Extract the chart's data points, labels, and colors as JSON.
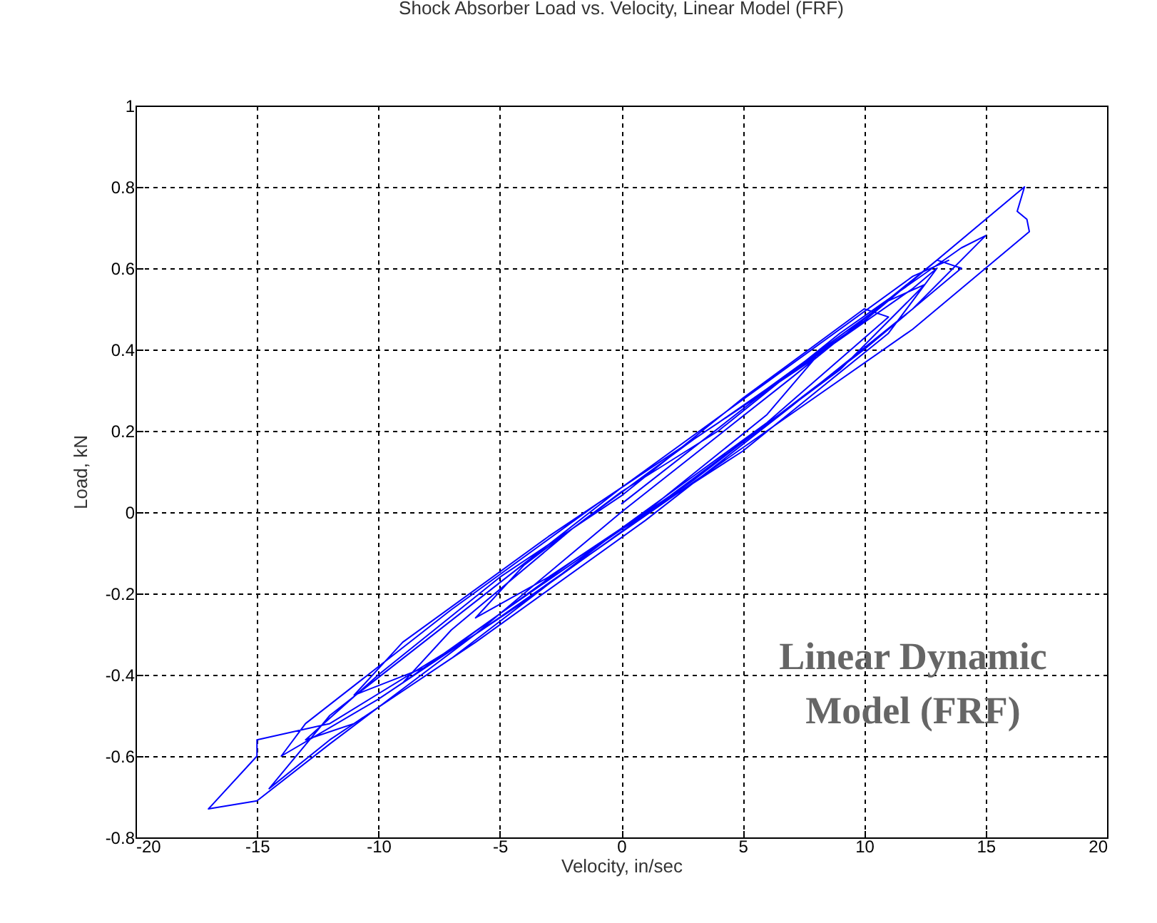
{
  "chart_data": {
    "type": "line",
    "title": "Shock Absorber Load vs. Velocity, Linear Model (FRF)",
    "xlabel": "Velocity, in/sec",
    "ylabel": "Load, kN",
    "annotations": [
      "Linear Dynamic Model (FRF)"
    ],
    "xlim": [
      -20,
      20
    ],
    "xticks": [
      -20,
      -15,
      -10,
      -5,
      0,
      5,
      10,
      15,
      20
    ],
    "ylim": [
      -0.8,
      1
    ],
    "yticks": [
      -0.8,
      -0.6,
      -0.4,
      -0.2,
      0,
      0.2,
      0.4,
      0.6,
      0.8,
      1
    ],
    "grid": true,
    "line_style": "solid",
    "series": [
      {
        "color": "#0000ff",
        "x": [
          0,
          6,
          12,
          13,
          11,
          5,
          -2,
          -8,
          -11,
          -9,
          -3,
          4,
          10,
          16.6,
          16.3,
          16.7,
          16.8,
          12,
          6,
          0,
          -6,
          -12,
          -15,
          -15,
          -17,
          -15,
          -12,
          -6,
          0,
          7,
          13,
          14,
          10,
          3,
          -4,
          -10,
          -14,
          -13,
          -7,
          -1,
          5,
          11,
          12.5,
          9,
          2,
          -5,
          -9,
          -7,
          -2,
          3,
          8,
          6,
          1,
          -3,
          -6,
          -4,
          0,
          4,
          9,
          14,
          15,
          12,
          7,
          1,
          -6,
          -11,
          -13,
          -10,
          -5,
          0,
          5,
          10,
          11,
          6,
          0,
          -7,
          -12,
          -14.5,
          -12,
          -6,
          0,
          6,
          12,
          13.5
        ],
        "values": [
          0.02,
          0.3,
          0.55,
          0.6,
          0.44,
          0.15,
          -0.12,
          -0.38,
          -0.45,
          -0.32,
          -0.06,
          0.22,
          0.47,
          0.8,
          0.74,
          0.72,
          0.69,
          0.45,
          0.2,
          -0.05,
          -0.3,
          -0.52,
          -0.56,
          -0.6,
          -0.73,
          -0.71,
          -0.57,
          -0.3,
          0,
          0.33,
          0.62,
          0.6,
          0.4,
          0.08,
          -0.22,
          -0.46,
          -0.6,
          -0.52,
          -0.24,
          0.02,
          0.26,
          0.52,
          0.56,
          0.35,
          0.04,
          -0.25,
          -0.42,
          -0.29,
          -0.04,
          0.18,
          0.38,
          0.24,
          0,
          -0.16,
          -0.26,
          -0.13,
          0.05,
          0.2,
          0.44,
          0.65,
          0.68,
          0.5,
          0.26,
          -0.02,
          -0.32,
          -0.52,
          -0.56,
          -0.4,
          -0.16,
          0.04,
          0.28,
          0.5,
          0.48,
          0.22,
          -0.04,
          -0.36,
          -0.56,
          -0.68,
          -0.5,
          -0.22,
          0.06,
          0.32,
          0.58,
          0.62
        ]
      }
    ]
  }
}
